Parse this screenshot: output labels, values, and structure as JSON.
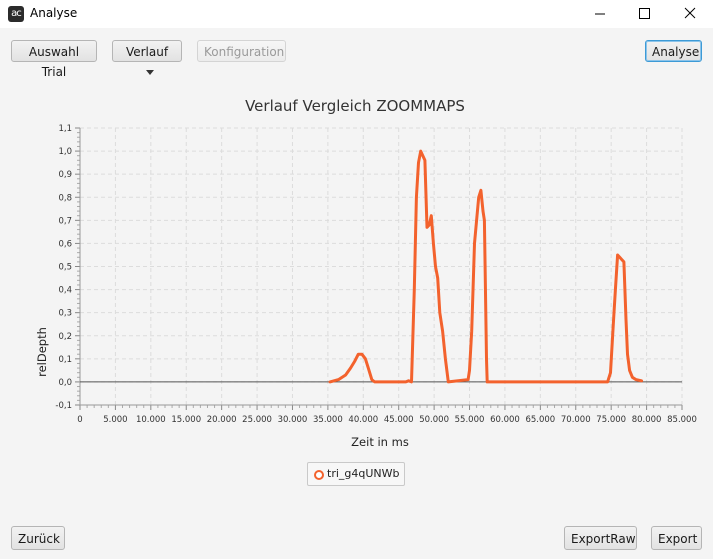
{
  "window": {
    "title": "Analyse",
    "icon_text": "ac"
  },
  "toolbar": {
    "auswahl_trial": "Auswahl Trial",
    "verlauf": "Verlauf",
    "konfiguration": "Konfiguration",
    "analyse": "Analyse"
  },
  "footer": {
    "zurueck": "Zurück",
    "export_raw": "ExportRaw",
    "export": "Export"
  },
  "colors": {
    "series": "#f3622d",
    "grid": "#dcdcdc",
    "zero_line": "#555555"
  },
  "chart_data": {
    "type": "line",
    "title": "Verlauf Vergleich ZOOMMAPS",
    "xlabel": "Zeit in ms",
    "ylabel": "relDepth",
    "xlim": [
      0,
      85000
    ],
    "ylim": [
      -0.1,
      1.1
    ],
    "x_ticks": [
      "0",
      "5.000",
      "10.000",
      "15.000",
      "20.000",
      "25.000",
      "30.000",
      "35.000",
      "40.000",
      "45.000",
      "50.000",
      "55.000",
      "60.000",
      "65.000",
      "70.000",
      "75.000",
      "80.000",
      "85.000"
    ],
    "y_ticks": [
      "-0,1",
      "0,0",
      "0,1",
      "0,2",
      "0,3",
      "0,4",
      "0,5",
      "0,6",
      "0,7",
      "0,8",
      "0,9",
      "1,0",
      "1,1"
    ],
    "grid": true,
    "legend_position": "bottom-center",
    "series": [
      {
        "name": "tri_g4qUNWb",
        "x": [
          35300,
          36500,
          37500,
          38200,
          38800,
          39300,
          39800,
          40300,
          40700,
          41200,
          41600,
          42200,
          45500,
          46000,
          46400,
          46800,
          47200,
          47500,
          47800,
          48100,
          48400,
          48700,
          49000,
          49300,
          49600,
          49900,
          50200,
          50500,
          50800,
          51200,
          51600,
          52000,
          54800,
          55000,
          55300,
          55700,
          56000,
          56300,
          56600,
          56900,
          57100,
          57400,
          57500,
          58000,
          74500,
          74900,
          75300,
          75600,
          75900,
          76200,
          76500,
          76800,
          77100,
          77300,
          77600,
          78000,
          78500,
          79300
        ],
        "y": [
          0.0,
          0.01,
          0.03,
          0.06,
          0.09,
          0.12,
          0.12,
          0.1,
          0.06,
          0.01,
          0.0,
          0.0,
          0.0,
          0.0,
          0.005,
          0.0,
          0.4,
          0.8,
          0.95,
          1.0,
          0.98,
          0.96,
          0.67,
          0.68,
          0.72,
          0.6,
          0.5,
          0.45,
          0.3,
          0.22,
          0.1,
          0.0,
          0.01,
          0.05,
          0.22,
          0.6,
          0.7,
          0.8,
          0.83,
          0.74,
          0.7,
          0.1,
          0.0,
          0.0,
          0.0,
          0.04,
          0.25,
          0.4,
          0.55,
          0.54,
          0.53,
          0.52,
          0.27,
          0.12,
          0.05,
          0.02,
          0.01,
          0.005
        ]
      }
    ]
  }
}
